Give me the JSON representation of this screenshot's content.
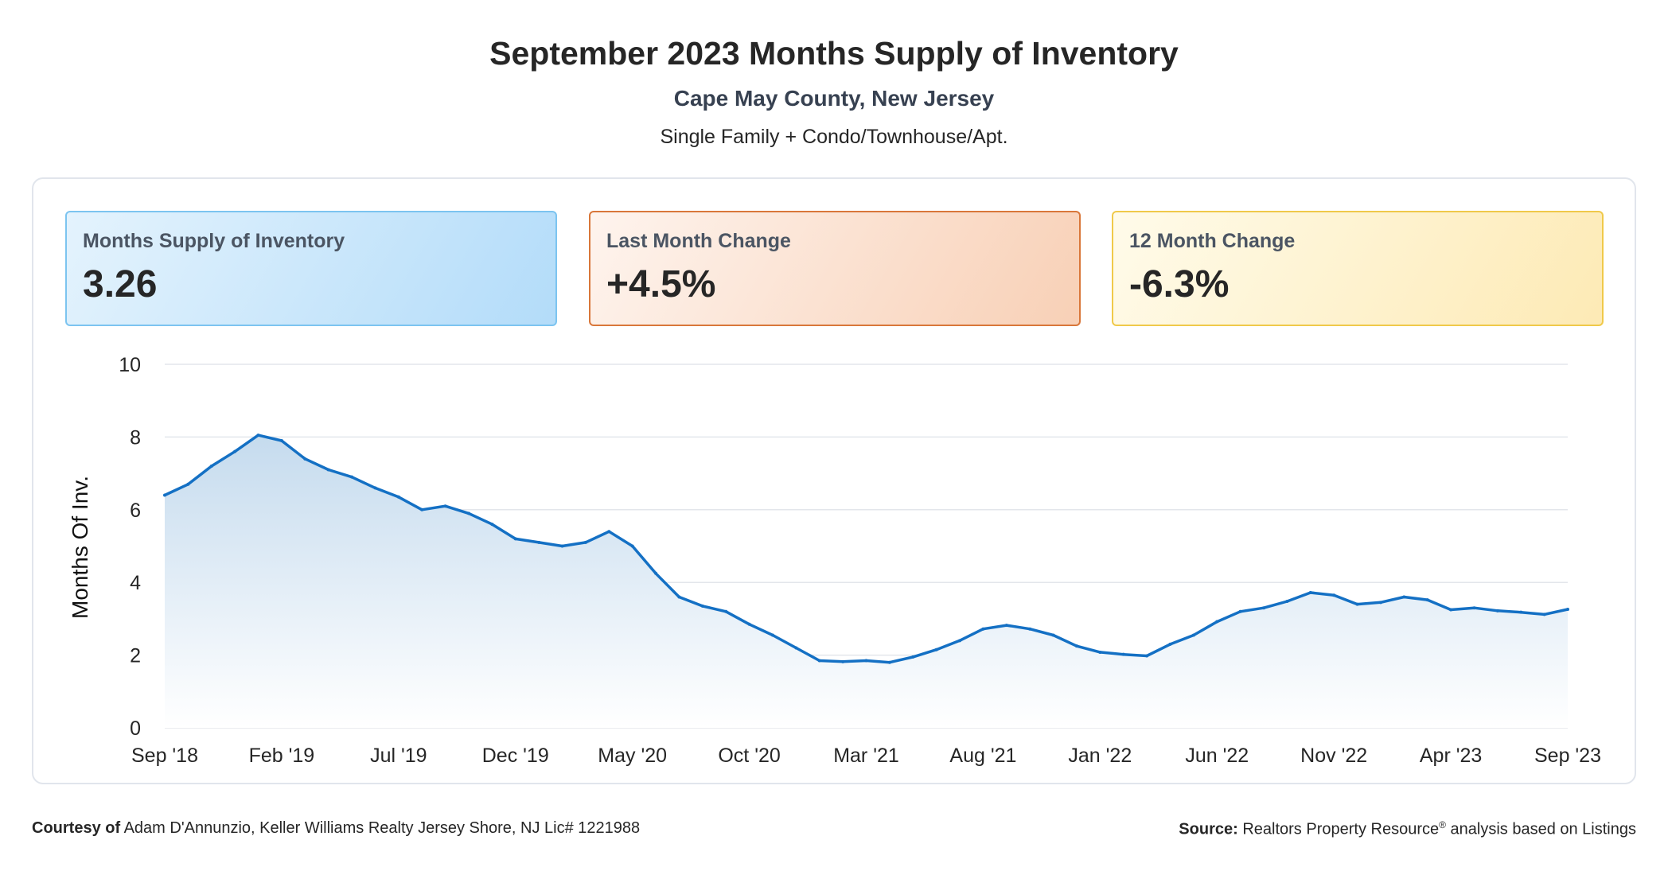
{
  "header": {
    "title": "September 2023 Months Supply of Inventory",
    "subtitle": "Cape May County, New Jersey",
    "segment": "Single Family + Condo/Townhouse/Apt."
  },
  "stats": [
    {
      "label": "Months Supply of Inventory",
      "value": "3.26"
    },
    {
      "label": "Last Month Change",
      "value": "+4.5%"
    },
    {
      "label": "12 Month Change",
      "value": "-6.3%"
    }
  ],
  "colors": {
    "line": "#1470c4",
    "fill_top": "#c5dbee",
    "fill_bottom": "#ffffff",
    "grid": "#e3e6eb"
  },
  "chart_data": {
    "type": "area",
    "ylabel": "Months Of Inv.",
    "xlabel": "",
    "ylim": [
      0,
      10
    ],
    "yticks": [
      0,
      2,
      4,
      6,
      8,
      10
    ],
    "grid": true,
    "xtick_labels": [
      "Sep '18",
      "Feb '19",
      "Jul '19",
      "Dec '19",
      "May '20",
      "Oct '20",
      "Mar '21",
      "Aug '21",
      "Jan '22",
      "Jun '22",
      "Nov '22",
      "Apr '23",
      "Sep '23"
    ],
    "x": [
      "Sep '18",
      "Oct '18",
      "Nov '18",
      "Dec '18",
      "Jan '19",
      "Feb '19",
      "Mar '19",
      "Apr '19",
      "May '19",
      "Jun '19",
      "Jul '19",
      "Aug '19",
      "Sep '19",
      "Oct '19",
      "Nov '19",
      "Dec '19",
      "Jan '20",
      "Feb '20",
      "Mar '20",
      "Apr '20",
      "May '20",
      "Jun '20",
      "Jul '20",
      "Aug '20",
      "Sep '20",
      "Oct '20",
      "Nov '20",
      "Dec '20",
      "Jan '21",
      "Feb '21",
      "Mar '21",
      "Apr '21",
      "May '21",
      "Jun '21",
      "Jul '21",
      "Aug '21",
      "Sep '21",
      "Oct '21",
      "Nov '21",
      "Dec '21",
      "Jan '22",
      "Feb '22",
      "Mar '22",
      "Apr '22",
      "May '22",
      "Jun '22",
      "Jul '22",
      "Aug '22",
      "Sep '22",
      "Oct '22",
      "Nov '22",
      "Dec '22",
      "Jan '23",
      "Feb '23",
      "Mar '23",
      "Apr '23",
      "May '23",
      "Jun '23",
      "Jul '23",
      "Aug '23",
      "Sep '23"
    ],
    "series": [
      {
        "values": [
          6.4,
          6.7,
          7.2,
          7.6,
          8.05,
          7.9,
          7.4,
          7.1,
          6.9,
          6.6,
          6.35,
          6.0,
          6.1,
          5.9,
          5.6,
          5.2,
          5.1,
          5.0,
          5.1,
          5.4,
          5.0,
          4.25,
          3.6,
          3.35,
          3.2,
          2.85,
          2.55,
          2.2,
          1.85,
          1.82,
          1.85,
          1.8,
          1.95,
          2.15,
          2.4,
          2.72,
          2.82,
          2.72,
          2.55,
          2.25,
          2.08,
          2.02,
          1.98,
          2.3,
          2.55,
          2.92,
          3.2,
          3.3,
          3.48,
          3.72,
          3.65,
          3.4,
          3.45,
          3.6,
          3.52,
          3.25,
          3.3,
          3.22,
          3.18,
          3.12,
          3.26
        ]
      }
    ]
  },
  "footer": {
    "courtesy_label": "Courtesy of",
    "courtesy_text": "Adam D'Annunzio, Keller Williams Realty Jersey Shore, NJ Lic# 1221988",
    "source_label": "Source:",
    "source_text_1": "Realtors Property Resource",
    "source_reg": "®",
    "source_text_2": " analysis based on Listings"
  }
}
